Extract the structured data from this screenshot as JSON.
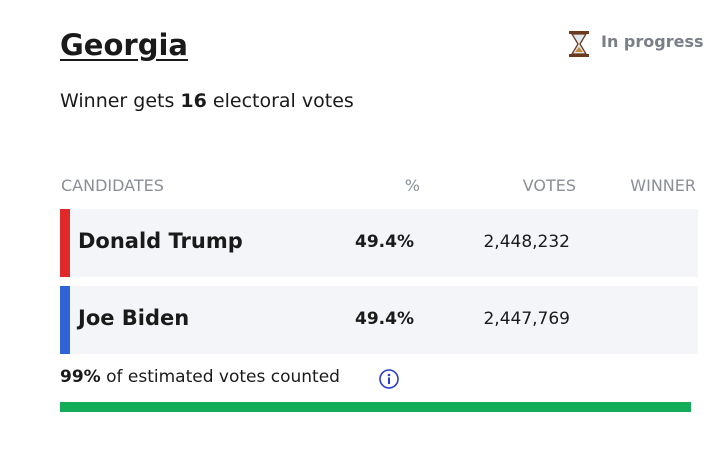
{
  "header": {
    "title": "Georgia",
    "status": "In progress",
    "subtitle": {
      "before": "Winner gets",
      "votes": "16",
      "after": "electoral votes"
    }
  },
  "table": {
    "columns": [
      "CANDIDATES",
      "%",
      "VOTES",
      "WINNER"
    ],
    "rows": [
      {
        "name": "Donald Trump",
        "percent": "49.4%",
        "votes": "2,448,232",
        "color": "#e02a2a"
      },
      {
        "name": "Joe Biden",
        "percent": "49.4%",
        "votes": "2,447,769",
        "color": "#2f63d6"
      }
    ]
  },
  "footer": {
    "percent": "99%",
    "text": "of estimated votes counted"
  }
}
